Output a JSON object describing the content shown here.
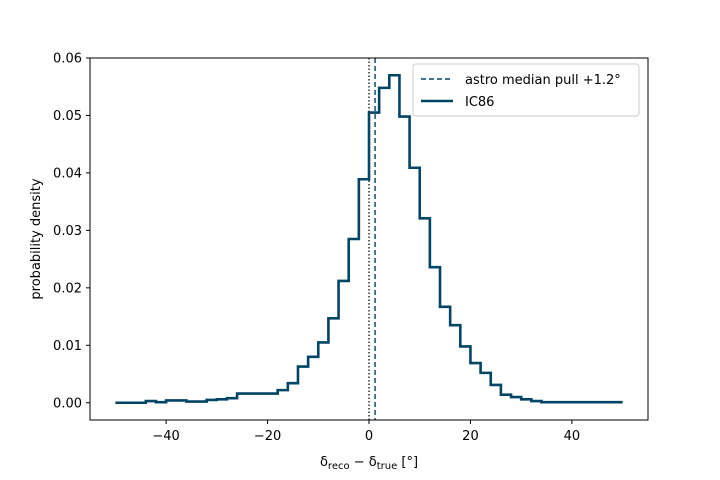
{
  "chart_data": {
    "type": "line",
    "xlabel": "δ_reco − δ_true [°]",
    "ylabel": "probability density",
    "xlim": [
      -55,
      55
    ],
    "ylim": [
      -0.003,
      0.06
    ],
    "x_ticks": [
      -40,
      -20,
      0,
      20,
      40
    ],
    "x_tick_labels": [
      "−40",
      "−20",
      "0",
      "20",
      "40"
    ],
    "y_ticks": [
      0.0,
      0.01,
      0.02,
      0.03,
      0.04,
      0.05,
      0.06
    ],
    "y_tick_labels": [
      "0.00",
      "0.01",
      "0.02",
      "0.03",
      "0.04",
      "0.05",
      "0.06"
    ],
    "grid": false,
    "legend_position": "top-right",
    "series": [
      {
        "name": "IC86",
        "style": "step",
        "color": "#004466",
        "bin_edges": [
          -50,
          -48,
          -46,
          -44,
          -42,
          -40,
          -38,
          -36,
          -34,
          -32,
          -30,
          -28,
          -26,
          -24,
          -22,
          -20,
          -18,
          -16,
          -14,
          -12,
          -10,
          -8,
          -6,
          -4,
          -2,
          0,
          2,
          4,
          6,
          8,
          10,
          12,
          14,
          16,
          18,
          20,
          22,
          24,
          26,
          28,
          30,
          32,
          34,
          36,
          38,
          40,
          42,
          44,
          46,
          48,
          50
        ],
        "values": [
          0.0,
          0.0,
          0.0,
          0.0003,
          0.0001,
          0.0004,
          0.0004,
          0.0002,
          0.0002,
          0.0005,
          0.0006,
          0.0008,
          0.0016,
          0.0016,
          0.0016,
          0.0016,
          0.0022,
          0.0034,
          0.0063,
          0.008,
          0.0105,
          0.0147,
          0.0212,
          0.0285,
          0.0389,
          0.0505,
          0.0548,
          0.057,
          0.0498,
          0.0409,
          0.0321,
          0.0236,
          0.0167,
          0.0135,
          0.0098,
          0.0069,
          0.0052,
          0.0031,
          0.0014,
          0.001,
          0.0006,
          0.0003,
          0.0001,
          0.0001,
          0.0001,
          0.0001,
          0.0001,
          0.0001,
          0.0001,
          0.0001
        ]
      },
      {
        "name": "astro median pull +1.2°",
        "style": "vline-dashed",
        "color": "#004466",
        "x": 1.2
      }
    ],
    "annotations": [
      {
        "style": "vline-dotted",
        "color": "#000000",
        "x": 0
      }
    ]
  }
}
